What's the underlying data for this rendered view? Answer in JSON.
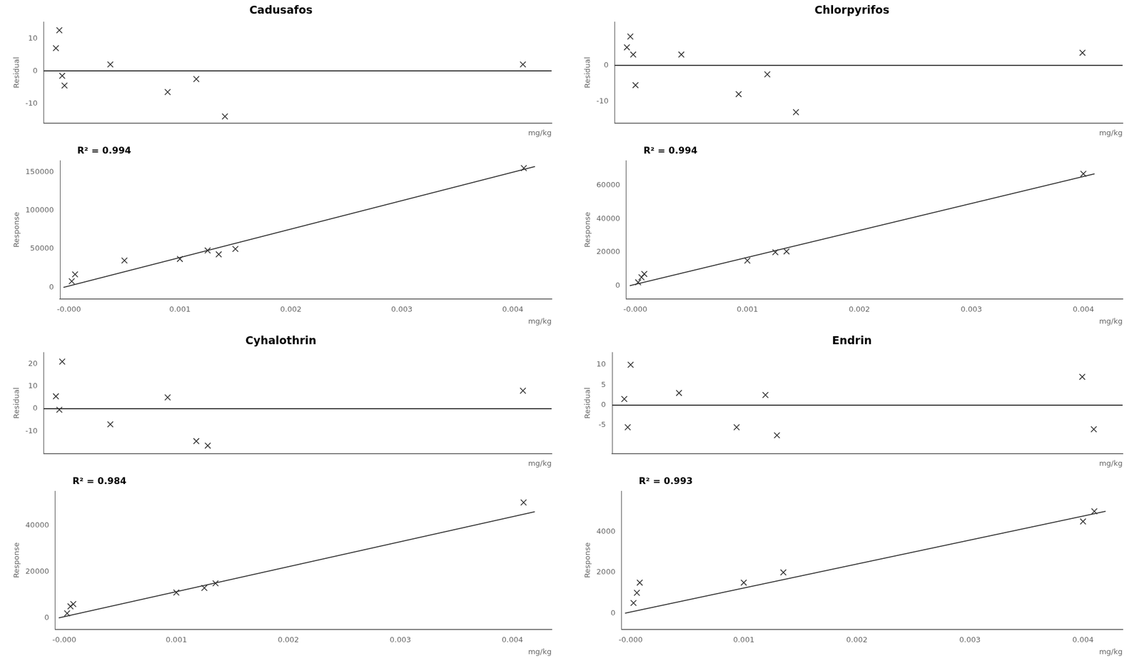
{
  "chart_data": [
    {
      "type": "scatter",
      "title": "Cadusafos",
      "ylabel": "Residual",
      "xlabel": "mg/kg",
      "xlim": [
        -8e-05,
        0.00435
      ],
      "ylim": [
        -16,
        15
      ],
      "yticks": [
        10,
        0,
        -10
      ],
      "tick_labels": "y",
      "grid": false,
      "hline": 0,
      "series": [
        {
          "x": [
            2.5e-05,
            5.5e-05,
            8e-05,
            0.0005,
            0.001,
            0.00125,
            0.0041
          ],
          "values": [
            7.0,
            12.5,
            -1.5,
            2.0,
            -6.5,
            -2.5,
            2.0
          ],
          "color": "#333333",
          "marker": "x"
        },
        {
          "x": [
            0.0001,
            0.0015
          ],
          "values": [
            -4.5,
            -14.0
          ],
          "color": "#333333",
          "marker": "x"
        }
      ]
    },
    {
      "type": "scatter",
      "ylabel": "Response",
      "xlabel": "mg/kg",
      "xlim": [
        -8e-05,
        0.00435
      ],
      "ylim": [
        -15000,
        165000
      ],
      "yticks": [
        0,
        50000,
        100000,
        150000
      ],
      "xticks": [
        {
          "value": 0.0,
          "label": "-0.000"
        },
        0.001,
        0.002,
        0.003,
        0.004
      ],
      "grid": false,
      "annotations": [
        "R² = 0.994"
      ],
      "series": [
        {
          "type": "line",
          "line_style": "solid",
          "color": "#222222",
          "x": [
            -5e-05,
            0.0042
          ],
          "values": [
            0,
            157000
          ]
        },
        {
          "x": [
            2.5e-05,
            5.5e-05,
            0.0005,
            0.001,
            0.00125,
            0.00135,
            0.0015,
            0.0041
          ],
          "values": [
            8000,
            17000,
            35000,
            37000,
            48000,
            43000,
            50000,
            155000
          ],
          "color": "#333333",
          "marker": "x"
        }
      ]
    },
    {
      "type": "scatter",
      "title": "Chlorpyrifos",
      "ylabel": "Residual",
      "xlabel": "mg/kg",
      "xlim": [
        -8e-05,
        0.00435
      ],
      "ylim": [
        -16,
        12
      ],
      "yticks": [
        0,
        -10
      ],
      "tick_labels": "y",
      "grid": false,
      "hline": 0,
      "series": [
        {
          "x": [
            2.5e-05,
            5.5e-05,
            8e-05,
            0.0005,
            0.001,
            0.00125,
            0.0015,
            0.004
          ],
          "values": [
            5.0,
            8.0,
            3.0,
            3.0,
            -8.0,
            -2.5,
            -13.0,
            3.5
          ],
          "color": "#333333",
          "marker": "x"
        },
        {
          "x": [
            0.0001
          ],
          "values": [
            -5.5
          ],
          "color": "#333333",
          "marker": "x"
        }
      ]
    },
    {
      "type": "scatter",
      "ylabel": "Response",
      "xlabel": "mg/kg",
      "xlim": [
        -8e-05,
        0.00435
      ],
      "ylim": [
        -8000,
        75000
      ],
      "yticks": [
        0,
        20000,
        40000,
        60000
      ],
      "xticks": [
        {
          "value": 0.0,
          "label": "-0.000"
        },
        0.001,
        0.002,
        0.003,
        0.004
      ],
      "grid": false,
      "annotations": [
        "R² = 0.994"
      ],
      "series": [
        {
          "type": "line",
          "line_style": "solid",
          "color": "#222222",
          "x": [
            -5e-05,
            0.0041
          ],
          "values": [
            0,
            67000
          ]
        },
        {
          "x": [
            2.5e-05,
            5.5e-05,
            8e-05,
            0.001,
            0.00125,
            0.00135,
            0.004
          ],
          "values": [
            2000,
            5000,
            7000,
            15000,
            20000,
            20500,
            67000
          ],
          "color": "#333333",
          "marker": "x"
        }
      ]
    },
    {
      "type": "scatter",
      "title": "Cyhalothrin",
      "ylabel": "Residual",
      "xlabel": "mg/kg",
      "xlim": [
        -8e-05,
        0.00435
      ],
      "ylim": [
        -20,
        25
      ],
      "yticks": [
        20,
        10,
        0,
        -10
      ],
      "tick_labels": "y",
      "grid": false,
      "hline": 0,
      "series": [
        {
          "x": [
            2.5e-05,
            5.5e-05,
            8e-05,
            0.0005,
            0.001,
            0.00125,
            0.0041
          ],
          "values": [
            5.5,
            -0.5,
            21.0,
            -7.0,
            5.0,
            -14.5,
            8.0
          ],
          "color": "#333333",
          "marker": "x"
        },
        {
          "x": [
            0.00135
          ],
          "values": [
            -16.5
          ],
          "color": "#333333",
          "marker": "x"
        }
      ]
    },
    {
      "type": "scatter",
      "ylabel": "Response",
      "xlabel": "mg/kg",
      "xlim": [
        -8e-05,
        0.00435
      ],
      "ylim": [
        -5000,
        55000
      ],
      "yticks": [
        0,
        20000,
        40000
      ],
      "xticks": [
        {
          "value": 0.0,
          "label": "-0.000"
        },
        0.001,
        0.002,
        0.003,
        0.004
      ],
      "grid": false,
      "annotations": [
        "R² = 0.984"
      ],
      "series": [
        {
          "type": "line",
          "line_style": "solid",
          "color": "#222222",
          "x": [
            -5e-05,
            0.0042
          ],
          "values": [
            0,
            46000
          ]
        },
        {
          "x": [
            2.5e-05,
            5.5e-05,
            8e-05,
            0.001,
            0.00125,
            0.00135,
            0.0041
          ],
          "values": [
            2000,
            5000,
            6000,
            11000,
            13000,
            15000,
            50000
          ],
          "color": "#333333",
          "marker": "x"
        }
      ]
    },
    {
      "type": "scatter",
      "title": "Endrin",
      "ylabel": "Residual",
      "xlabel": "mg/kg",
      "xlim": [
        -8e-05,
        0.00435
      ],
      "ylim": [
        -12,
        13
      ],
      "yticks": [
        10,
        5,
        0,
        -5
      ],
      "tick_labels": "y",
      "grid": false,
      "hline": 0,
      "series": [
        {
          "x": [
            2.5e-05,
            5.5e-05,
            8e-05,
            0.0005,
            0.001,
            0.00125,
            0.004,
            0.0041
          ],
          "values": [
            1.5,
            -5.5,
            10.0,
            3.0,
            -5.5,
            2.5,
            7.0,
            -6.0
          ],
          "color": "#333333",
          "marker": "x"
        },
        {
          "x": [
            0.00135
          ],
          "values": [
            -7.5
          ],
          "color": "#333333",
          "marker": "x"
        }
      ]
    },
    {
      "type": "scatter",
      "ylabel": "Response",
      "xlabel": "mg/kg",
      "xlim": [
        -8e-05,
        0.00435
      ],
      "ylim": [
        -800,
        6000
      ],
      "yticks": [
        0,
        2000,
        4000
      ],
      "xticks": [
        {
          "value": 0.0,
          "label": "-0.000"
        },
        0.001,
        0.002,
        0.003,
        0.004
      ],
      "grid": false,
      "annotations": [
        "R² = 0.993"
      ],
      "series": [
        {
          "type": "line",
          "line_style": "solid",
          "color": "#222222",
          "x": [
            -5e-05,
            0.0042
          ],
          "values": [
            0,
            5000
          ]
        },
        {
          "x": [
            2.5e-05,
            5.5e-05,
            8e-05,
            0.001,
            0.00135,
            0.004,
            0.0041
          ],
          "values": [
            500,
            1000,
            1500,
            1500,
            2000,
            4500,
            5000
          ],
          "color": "#333333",
          "marker": "x"
        }
      ]
    }
  ]
}
